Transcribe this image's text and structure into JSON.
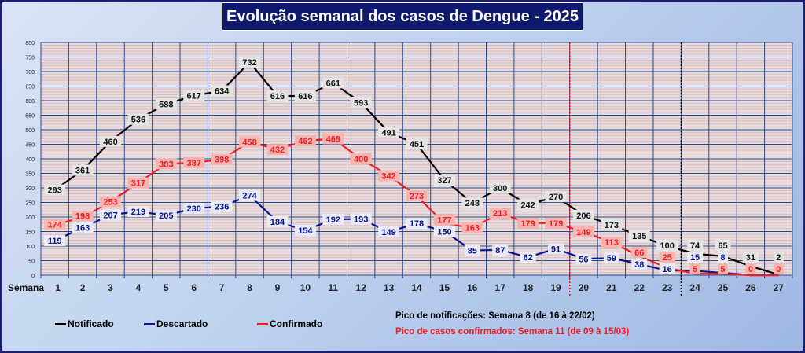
{
  "chart_data": {
    "type": "line",
    "title": "Evolução semanal dos casos de Dengue - 2025",
    "xlabel": "Semana",
    "categories": [
      "1",
      "2",
      "3",
      "4",
      "5",
      "6",
      "7",
      "8",
      "9",
      "10",
      "11",
      "12",
      "13",
      "14",
      "15",
      "16",
      "17",
      "18",
      "19",
      "20",
      "21",
      "22",
      "23",
      "24",
      "25",
      "26",
      "27"
    ],
    "ylim": [
      0,
      800
    ],
    "yticks": [
      "0",
      "50",
      "100",
      "150",
      "200",
      "250",
      "300",
      "350",
      "400",
      "450",
      "500",
      "550",
      "600",
      "650",
      "700",
      "750",
      "800"
    ],
    "grid": true,
    "legend_position": "bottom-left",
    "series": [
      {
        "name": "Notificado",
        "color": "#000000",
        "label_bg": "#e4e4e4",
        "label_color": "#111111",
        "values": [
          293,
          361,
          460,
          536,
          588,
          617,
          634,
          732,
          616,
          616,
          661,
          593,
          491,
          451,
          327,
          248,
          300,
          242,
          270,
          206,
          173,
          135,
          100,
          74,
          65,
          31,
          2
        ]
      },
      {
        "name": "Descartado",
        "color": "#0a1496",
        "label_bg": "#e8eaf4",
        "label_color": "#0a1496",
        "values": [
          119,
          163,
          207,
          219,
          205,
          230,
          236,
          274,
          184,
          154,
          192,
          193,
          149,
          178,
          150,
          85,
          87,
          62,
          91,
          56,
          59,
          38,
          16,
          15,
          8,
          0,
          0
        ]
      },
      {
        "name": "Confirmado",
        "color": "#ee1c24",
        "label_bg": "#f6b4b0",
        "label_color": "#ee1c24",
        "values": [
          174,
          198,
          253,
          317,
          383,
          387,
          398,
          458,
          432,
          462,
          469,
          400,
          342,
          273,
          177,
          163,
          213,
          179,
          179,
          149,
          113,
          66,
          25,
          5,
          5,
          0,
          0
        ]
      }
    ],
    "annotations": [
      {
        "type": "vline",
        "between": [
          "19",
          "20"
        ],
        "style": "dotted",
        "color": "#e00000"
      },
      {
        "type": "vline",
        "between": [
          "23",
          "24"
        ],
        "style": "dotted",
        "color": "#000000"
      }
    ]
  },
  "notes": {
    "peak_notifications": "Pico de notificações:  Semana 8 (de 16 à 22/02)",
    "peak_confirmed": "Pico de casos confirmados:  Semana 11 (de 09 à 15/03)"
  }
}
